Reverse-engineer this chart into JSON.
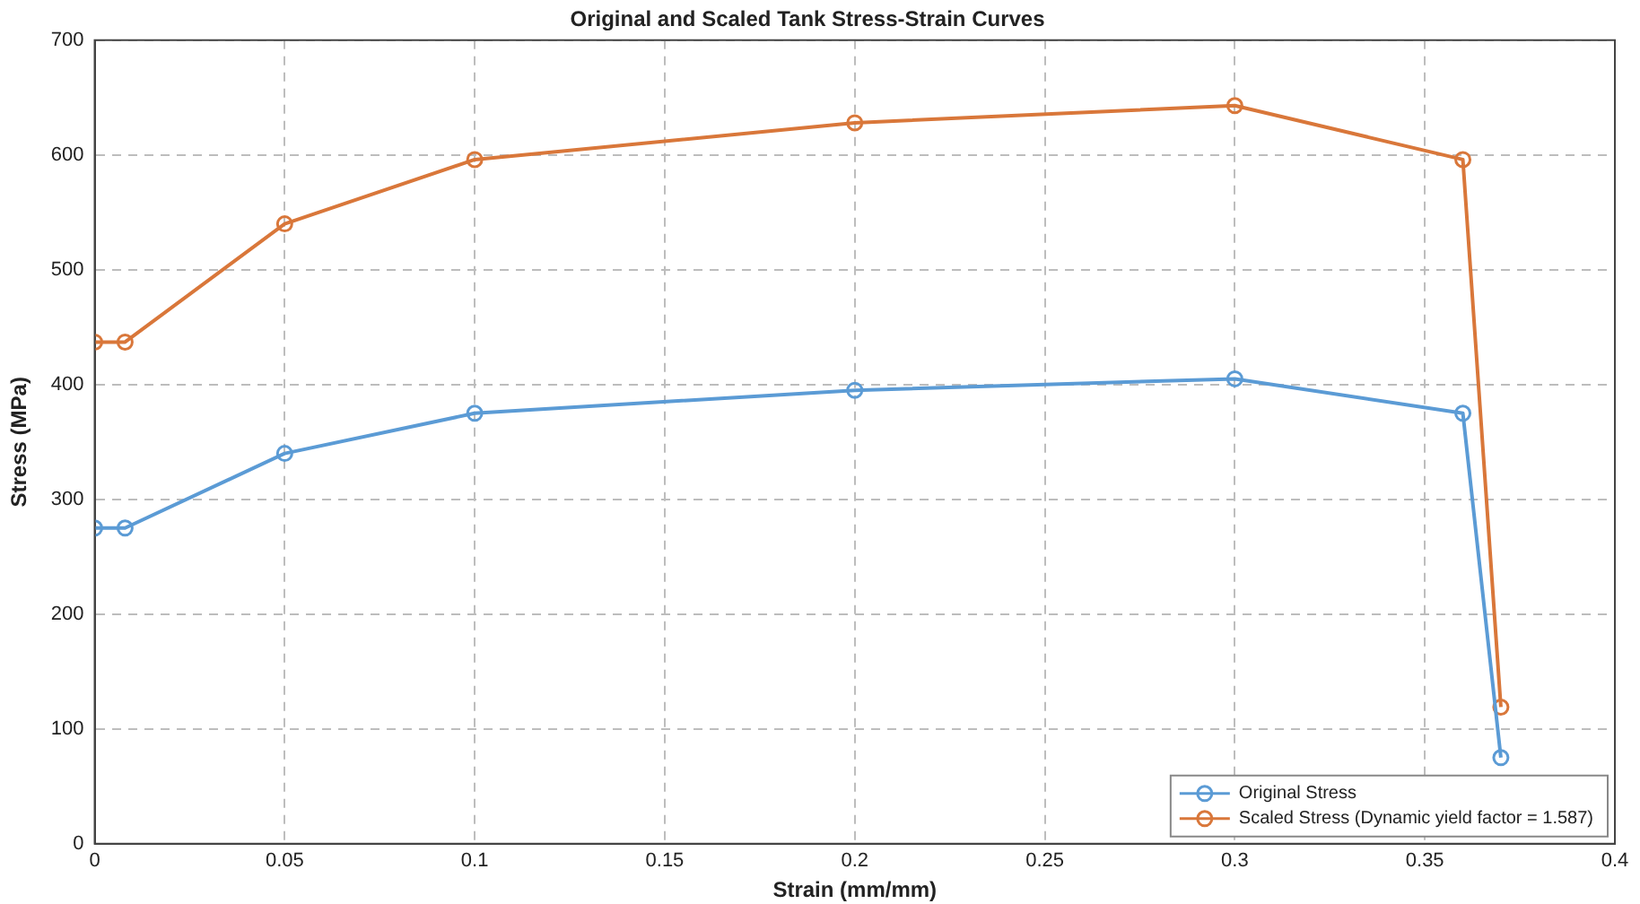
{
  "chart_data": {
    "type": "line",
    "title": "Original and Scaled Tank Stress-Strain Curves",
    "xlabel": "Strain (mm/mm)",
    "ylabel": "Stress (MPa)",
    "x": [
      0,
      0.008,
      0.05,
      0.1,
      0.2,
      0.3,
      0.36,
      0.37
    ],
    "series": [
      {
        "name": "Original Stress",
        "color": "#5b9bd5",
        "values": [
          275,
          275,
          340,
          375,
          395,
          405,
          375,
          75
        ]
      },
      {
        "name": "Scaled Stress (Dynamic yield factor = 1.587)",
        "color": "#d9773a",
        "values": [
          437,
          437,
          540,
          596,
          628,
          643,
          596,
          119
        ]
      }
    ],
    "xlim": [
      0,
      0.4
    ],
    "xticks": [
      0,
      0.05,
      0.1,
      0.15,
      0.2,
      0.25,
      0.3,
      0.35,
      0.4
    ],
    "ylim": [
      0,
      700
    ],
    "yticks": [
      0,
      100,
      200,
      300,
      400,
      500,
      600,
      700
    ],
    "grid": true,
    "legend": "bottom right",
    "marker": "circle",
    "line_style": "solid"
  }
}
